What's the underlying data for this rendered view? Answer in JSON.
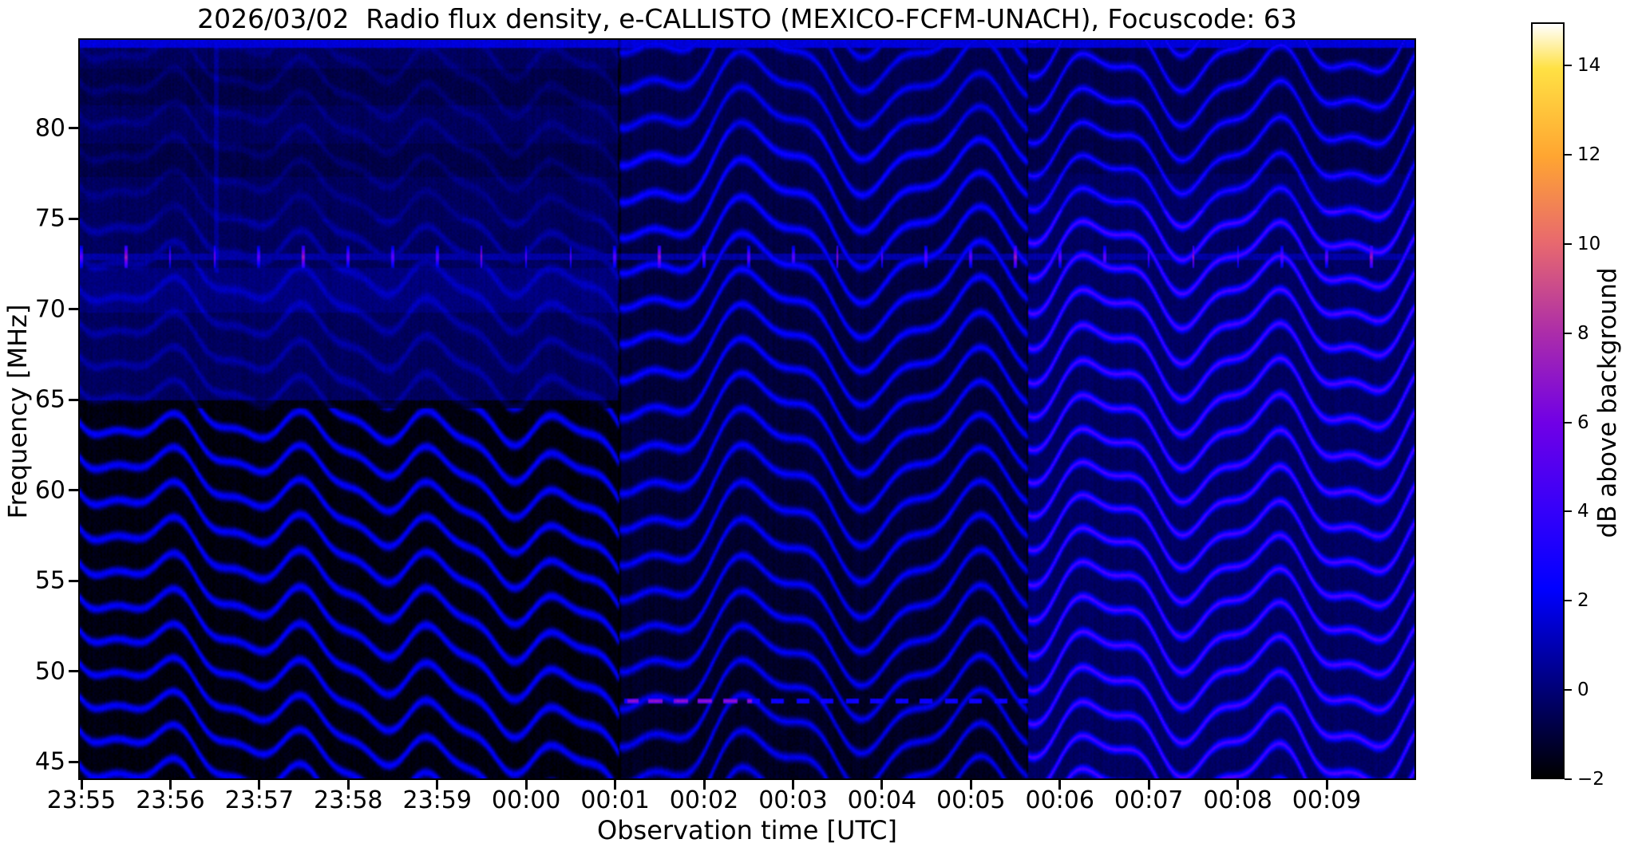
{
  "chart_data": {
    "type": "heatmap",
    "title": "2026/03/02  Radio flux density, e-CALLISTO (MEXICO-FCFM-UNACH), Focuscode: 63",
    "xlabel": "Observation time [UTC]",
    "ylabel": "Frequency [MHz]",
    "x_ticks": [
      "23:55",
      "23:56",
      "23:57",
      "23:58",
      "23:59",
      "00:00",
      "00:01",
      "00:02",
      "00:03",
      "00:04",
      "00:05",
      "00:06",
      "00:07",
      "00:08",
      "00:09"
    ],
    "x_start": "23:55",
    "x_end": "00:10",
    "x_span_minutes": 15,
    "y_ticks": [
      45,
      50,
      55,
      60,
      65,
      70,
      75,
      80
    ],
    "y_range_mhz": [
      44.07,
      84.9
    ],
    "grid": false,
    "legend": "none",
    "colorbar": {
      "label": "dB above background",
      "ticks": [
        14,
        12,
        10,
        8,
        6,
        4,
        2,
        0,
        -2
      ],
      "vmin": -2,
      "vmax": 15,
      "colormap": "gnuplot2",
      "gradient_stops": [
        [
          0.0,
          "#000000"
        ],
        [
          0.118,
          "#000078"
        ],
        [
          0.25,
          "#0000ff"
        ],
        [
          0.35,
          "#3300fa"
        ],
        [
          0.47,
          "#7000e6"
        ],
        [
          0.59,
          "#ac2da9"
        ],
        [
          0.71,
          "#e8696e"
        ],
        [
          0.824,
          "#ffa531"
        ],
        [
          0.941,
          "#ffe144"
        ],
        [
          1.0,
          "#ffffff"
        ]
      ]
    },
    "spectrogram": {
      "description": "Dynamic radio spectrum with drifting wavy interference fringes (blue on near-black), brightness increasing in three time segments",
      "fringe_spacing_mhz": 1.95,
      "segment_boundaries_min": [
        6.06,
        10.65
      ],
      "segments": [
        {
          "start_min": 0.0,
          "end_min": 6.06,
          "bg_upper_db": -0.45,
          "bg_lower_db": -1.75,
          "fringe_amp_db": 3.95,
          "upper_amp_db": 1.15,
          "drift_cycles_per_min": 0.78,
          "note": "dark navy above 65 MHz, black below with descending blue fringes"
        },
        {
          "start_min": 6.06,
          "end_min": 10.65,
          "bg_db": -1.45,
          "bg_slope_db_per_mhz": 0.02,
          "fringe_amp_db": 3.1,
          "note": "coherent chevron wave fringes across full band"
        },
        {
          "start_min": 10.65,
          "end_min": 15.0,
          "bg_db": -0.35,
          "fringe_amp_db": 3.9,
          "crest_boost_db": 1.3,
          "note": "brightest, violet-tinged fringes below 75 MHz"
        }
      ],
      "bands_segment1": {
        "bright_mhz": [
          69.8,
          72.3
        ],
        "dark_mhz": [
          [
            77.3,
            79.2
          ],
          [
            81.3,
            83.3
          ]
        ]
      },
      "rfi_lines": [
        {
          "freq_mhz": 72.9,
          "type": "line-with-dots",
          "dot_period_min": 0.5,
          "dot_peak_db": 7.6,
          "line_db": 0.7
        },
        {
          "freq_mhz": 48.35,
          "type": "dotted",
          "start_min": 6.06,
          "end_min": 10.65,
          "dash_db": 2.7,
          "magenta_start_min": 6.15,
          "magenta_end_min": 7.55,
          "magenta_db": 7.3
        }
      ],
      "top_edge_band": {
        "freq_above_mhz": 84.45,
        "db": 1.6
      },
      "vertical_streak": {
        "time_min": 1.53,
        "freq_above_mhz": 72,
        "extra_db": 0.9
      }
    }
  }
}
